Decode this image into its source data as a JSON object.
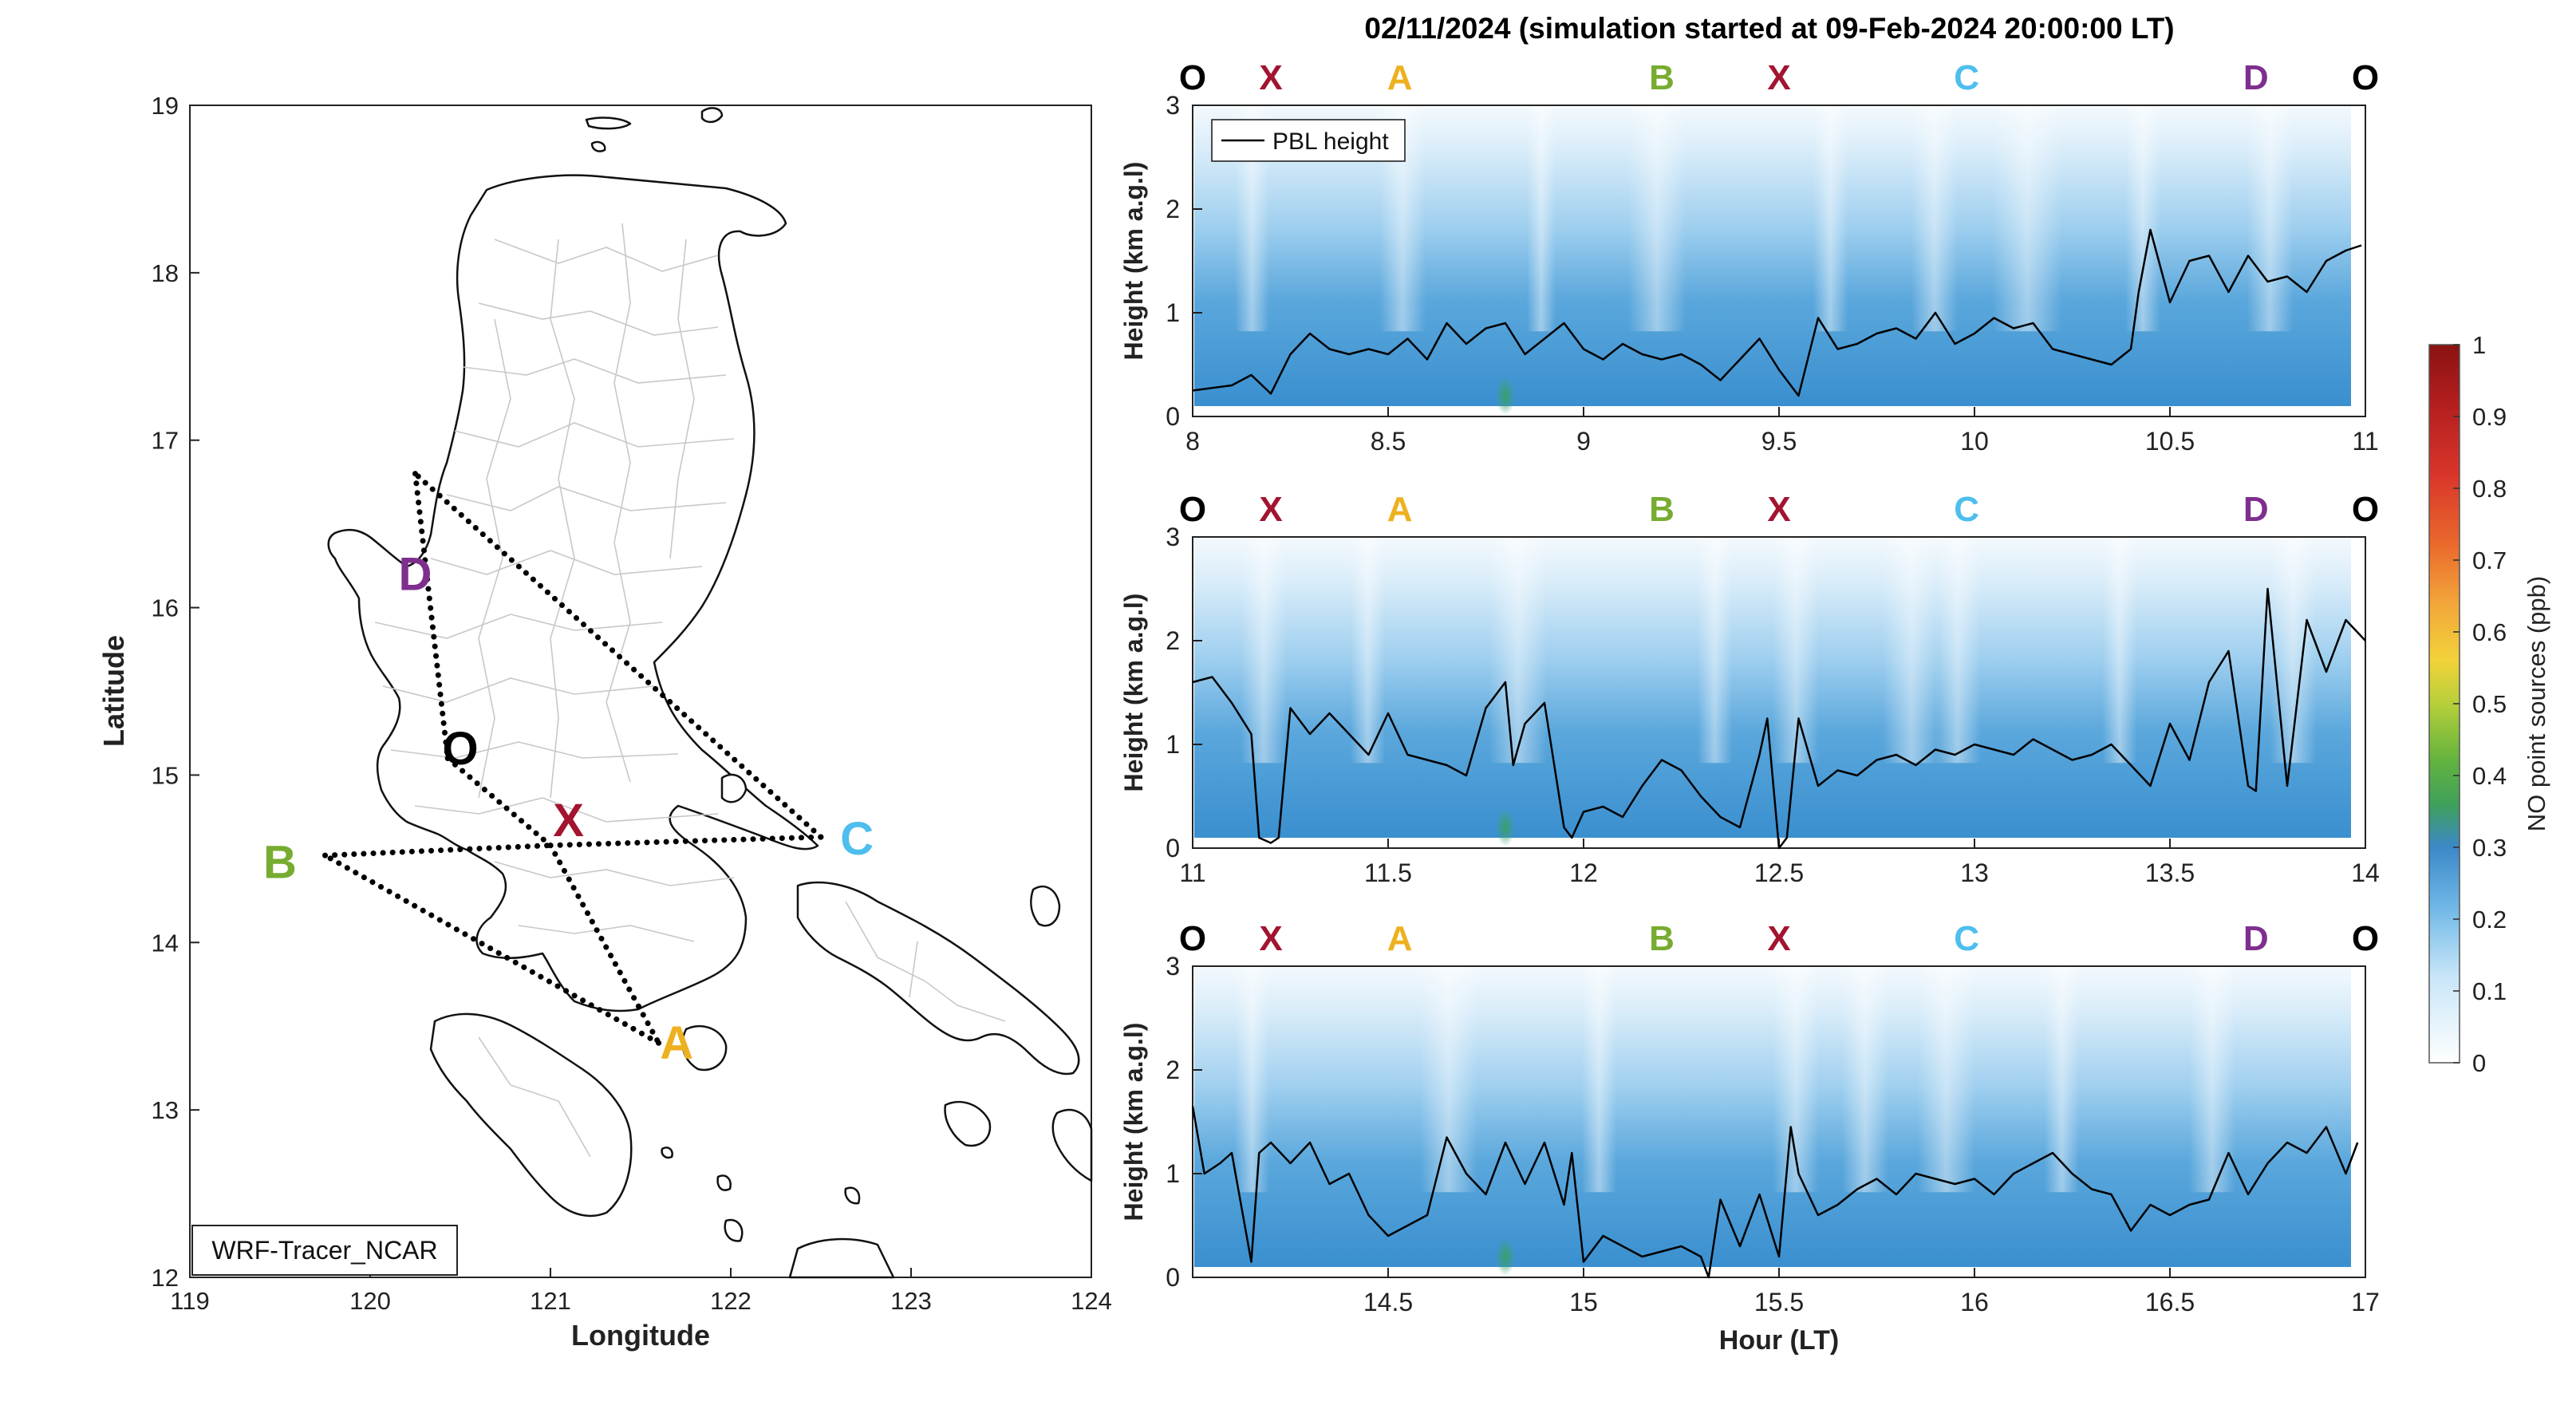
{
  "figure": {
    "title": "02/11/2024 (simulation started at 09-Feb-2024 20:00:00 LT)"
  },
  "colors": {
    "route_O": "#000000",
    "route_X": "#a2142f",
    "route_A": "#edb120",
    "route_B": "#77ac30",
    "route_C": "#4dbeee",
    "route_D": "#7e2f8e",
    "pbl_line": "#000000",
    "province_lines": "#c8c8c8"
  },
  "map": {
    "xlabel": "Longitude",
    "ylabel": "Latitude",
    "xlim": [
      119,
      124
    ],
    "ylim": [
      12,
      19
    ],
    "xticks": [
      119,
      120,
      121,
      122,
      123,
      124
    ],
    "yticks": [
      12,
      13,
      14,
      15,
      16,
      17,
      18,
      19
    ],
    "model_label": "WRF-Tracer_NCAR",
    "waypoints": [
      {
        "label": "D",
        "lon": 120.25,
        "lat": 16.8,
        "color_key": "route_D",
        "label_lon": 120.25,
        "label_lat": 16.2
      },
      {
        "label": "O",
        "lon": 120.43,
        "lat": 15.1,
        "color_key": "route_O",
        "label_lon": 120.5,
        "label_lat": 15.16
      },
      {
        "label": "X",
        "lon": 121.0,
        "lat": 14.58,
        "color_key": "route_X",
        "label_lon": 121.1,
        "label_lat": 14.73
      },
      {
        "label": "B",
        "lon": 119.75,
        "lat": 14.52,
        "color_key": "route_B",
        "label_lon": 119.5,
        "label_lat": 14.48
      },
      {
        "label": "C",
        "lon": 122.5,
        "lat": 14.63,
        "color_key": "route_C",
        "label_lon": 122.7,
        "label_lat": 14.62
      },
      {
        "label": "A",
        "lon": 121.6,
        "lat": 13.4,
        "color_key": "route_A",
        "label_lon": 121.7,
        "label_lat": 13.4
      }
    ],
    "route_lines": [
      [
        "D",
        "O"
      ],
      [
        "O",
        "X"
      ],
      [
        "X",
        "A"
      ],
      [
        "A",
        "B"
      ],
      [
        "B",
        "X"
      ],
      [
        "X",
        "C"
      ],
      [
        "C",
        "D"
      ]
    ]
  },
  "colorbar": {
    "label": "NO point sources (ppb)",
    "ticks": [
      "0",
      "0.1",
      "0.2",
      "0.3",
      "0.4",
      "0.5",
      "0.6",
      "0.7",
      "0.8",
      "0.9",
      "1"
    ]
  },
  "chart_data": [
    {
      "type": "heatmap",
      "panel": "top",
      "x": {
        "lim": [
          8,
          11
        ],
        "ticks": [
          "8",
          "8.5",
          "9",
          "9.5",
          "10",
          "10.5",
          "11"
        ],
        "label": ""
      },
      "y": {
        "lim": [
          0,
          3
        ],
        "ticks": [
          "0",
          "1",
          "2",
          "3"
        ],
        "label": "Height (km a.g.l)"
      },
      "legend": {
        "entries": [
          "PBL height"
        ],
        "location": "top-left"
      },
      "route_markers": [
        {
          "label": "O",
          "hour": 8.0
        },
        {
          "label": "X",
          "hour": 8.2
        },
        {
          "label": "A",
          "hour": 8.53
        },
        {
          "label": "B",
          "hour": 9.2
        },
        {
          "label": "X",
          "hour": 9.5
        },
        {
          "label": "C",
          "hour": 9.98
        },
        {
          "label": "D",
          "hour": 10.72
        },
        {
          "label": "O",
          "hour": 11.0
        }
      ],
      "series": [
        {
          "name": "PBL height",
          "x": [
            8.0,
            8.1,
            8.15,
            8.2,
            8.25,
            8.3,
            8.35,
            8.4,
            8.45,
            8.5,
            8.55,
            8.6,
            8.65,
            8.7,
            8.75,
            8.8,
            8.85,
            8.9,
            8.95,
            9.0,
            9.05,
            9.1,
            9.15,
            9.2,
            9.25,
            9.3,
            9.35,
            9.4,
            9.45,
            9.5,
            9.52,
            9.55,
            9.6,
            9.65,
            9.7,
            9.75,
            9.8,
            9.85,
            9.9,
            9.95,
            10.0,
            10.05,
            10.1,
            10.15,
            10.2,
            10.25,
            10.3,
            10.35,
            10.4,
            10.42,
            10.45,
            10.5,
            10.55,
            10.6,
            10.65,
            10.7,
            10.75,
            10.8,
            10.85,
            10.9,
            10.95,
            10.99
          ],
          "y": [
            0.25,
            0.3,
            0.4,
            0.22,
            0.6,
            0.8,
            0.65,
            0.6,
            0.65,
            0.6,
            0.75,
            0.55,
            0.9,
            0.7,
            0.85,
            0.9,
            0.6,
            0.75,
            0.9,
            0.65,
            0.55,
            0.7,
            0.6,
            0.55,
            0.6,
            0.5,
            0.35,
            0.55,
            0.75,
            0.45,
            0.35,
            0.2,
            0.95,
            0.65,
            0.7,
            0.8,
            0.85,
            0.75,
            1.0,
            0.7,
            0.8,
            0.95,
            0.85,
            0.9,
            0.65,
            0.6,
            0.55,
            0.5,
            0.65,
            1.2,
            1.8,
            1.1,
            1.5,
            1.55,
            1.2,
            1.55,
            1.3,
            1.35,
            1.2,
            1.5,
            1.6,
            1.65
          ]
        }
      ]
    },
    {
      "type": "heatmap",
      "panel": "middle",
      "x": {
        "lim": [
          11,
          14
        ],
        "ticks": [
          "11",
          "11.5",
          "12",
          "12.5",
          "13",
          "13.5",
          "14"
        ],
        "label": ""
      },
      "y": {
        "lim": [
          0,
          3
        ],
        "ticks": [
          "0",
          "1",
          "2",
          "3"
        ],
        "label": "Height (km a.g.l)"
      },
      "route_markers": [
        {
          "label": "O",
          "hour": 11.0
        },
        {
          "label": "X",
          "hour": 11.2
        },
        {
          "label": "A",
          "hour": 11.53
        },
        {
          "label": "B",
          "hour": 12.2
        },
        {
          "label": "X",
          "hour": 12.5
        },
        {
          "label": "C",
          "hour": 12.98
        },
        {
          "label": "D",
          "hour": 13.72
        },
        {
          "label": "O",
          "hour": 14.0
        }
      ],
      "series": [
        {
          "name": "PBL height",
          "x": [
            11.0,
            11.05,
            11.1,
            11.15,
            11.17,
            11.2,
            11.22,
            11.25,
            11.3,
            11.35,
            11.4,
            11.45,
            11.5,
            11.55,
            11.6,
            11.65,
            11.7,
            11.75,
            11.8,
            11.82,
            11.85,
            11.9,
            11.95,
            11.97,
            12.0,
            12.05,
            12.1,
            12.15,
            12.2,
            12.25,
            12.3,
            12.35,
            12.4,
            12.45,
            12.47,
            12.5,
            12.52,
            12.55,
            12.6,
            12.65,
            12.7,
            12.75,
            12.8,
            12.85,
            12.9,
            12.95,
            13.0,
            13.05,
            13.1,
            13.15,
            13.2,
            13.25,
            13.3,
            13.35,
            13.4,
            13.45,
            13.5,
            13.55,
            13.6,
            13.65,
            13.7,
            13.72,
            13.75,
            13.8,
            13.85,
            13.9,
            13.95,
            14.0
          ],
          "y": [
            1.6,
            1.65,
            1.4,
            1.1,
            0.1,
            0.05,
            0.1,
            1.35,
            1.1,
            1.3,
            1.1,
            0.9,
            1.3,
            0.9,
            0.85,
            0.8,
            0.7,
            1.35,
            1.6,
            0.8,
            1.2,
            1.4,
            0.2,
            0.1,
            0.35,
            0.4,
            0.3,
            0.6,
            0.85,
            0.75,
            0.5,
            0.3,
            0.2,
            0.9,
            1.25,
            0.0,
            0.1,
            1.25,
            0.6,
            0.75,
            0.7,
            0.85,
            0.9,
            0.8,
            0.95,
            0.9,
            1.0,
            0.95,
            0.9,
            1.05,
            0.95,
            0.85,
            0.9,
            1.0,
            0.8,
            0.6,
            1.2,
            0.85,
            1.6,
            1.9,
            0.6,
            0.55,
            2.5,
            0.6,
            2.2,
            1.7,
            2.2,
            2.0
          ]
        }
      ]
    },
    {
      "type": "heatmap",
      "panel": "bottom",
      "x": {
        "lim": [
          14,
          17
        ],
        "ticks": [
          "14.5",
          "15",
          "15.5",
          "16",
          "16.5",
          "17"
        ],
        "label": "Hour (LT)"
      },
      "y": {
        "lim": [
          0,
          3
        ],
        "ticks": [
          "0",
          "1",
          "2",
          "3"
        ],
        "label": "Height (km a.g.l)"
      },
      "route_markers": [
        {
          "label": "O",
          "hour": 14.0
        },
        {
          "label": "X",
          "hour": 14.2
        },
        {
          "label": "A",
          "hour": 14.53
        },
        {
          "label": "B",
          "hour": 15.2
        },
        {
          "label": "X",
          "hour": 15.5
        },
        {
          "label": "C",
          "hour": 15.98
        },
        {
          "label": "D",
          "hour": 16.72
        },
        {
          "label": "O",
          "hour": 17.0
        }
      ],
      "series": [
        {
          "name": "PBL height",
          "x": [
            14.0,
            14.03,
            14.07,
            14.1,
            14.15,
            14.17,
            14.2,
            14.25,
            14.3,
            14.35,
            14.4,
            14.45,
            14.5,
            14.55,
            14.6,
            14.65,
            14.7,
            14.75,
            14.8,
            14.85,
            14.9,
            14.95,
            14.97,
            15.0,
            15.05,
            15.1,
            15.15,
            15.2,
            15.25,
            15.3,
            15.32,
            15.35,
            15.4,
            15.45,
            15.5,
            15.53,
            15.55,
            15.6,
            15.65,
            15.7,
            15.75,
            15.8,
            15.85,
            15.9,
            15.95,
            16.0,
            16.05,
            16.1,
            16.15,
            16.2,
            16.25,
            16.3,
            16.35,
            16.4,
            16.45,
            16.5,
            16.55,
            16.6,
            16.65,
            16.7,
            16.75,
            16.8,
            16.85,
            16.9,
            16.95,
            16.98
          ],
          "y": [
            1.65,
            1.0,
            1.1,
            1.2,
            0.15,
            1.2,
            1.3,
            1.1,
            1.3,
            0.9,
            1.0,
            0.6,
            0.4,
            0.5,
            0.6,
            1.35,
            1.0,
            0.8,
            1.3,
            0.9,
            1.3,
            0.7,
            1.2,
            0.15,
            0.4,
            0.3,
            0.2,
            0.25,
            0.3,
            0.2,
            0.0,
            0.75,
            0.3,
            0.8,
            0.2,
            1.45,
            1.0,
            0.6,
            0.7,
            0.85,
            0.95,
            0.8,
            1.0,
            0.95,
            0.9,
            0.95,
            0.8,
            1.0,
            1.1,
            1.2,
            1.0,
            0.85,
            0.8,
            0.45,
            0.7,
            0.6,
            0.7,
            0.75,
            1.2,
            0.8,
            1.1,
            1.3,
            1.2,
            1.45,
            1.0,
            1.3
          ]
        }
      ]
    }
  ]
}
